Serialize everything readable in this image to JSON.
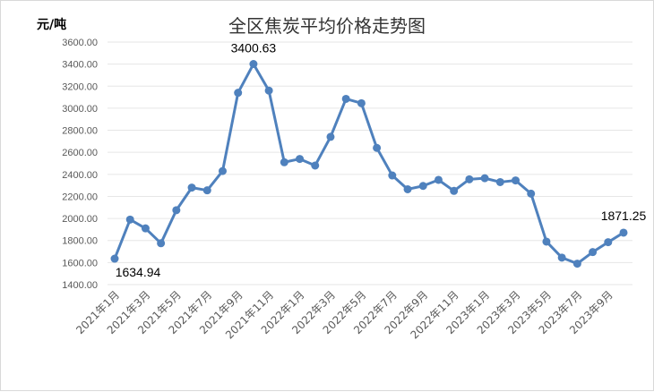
{
  "chart_data": {
    "type": "line",
    "title": "全区焦炭平均价格走势图",
    "ylabel": "元/吨",
    "xlabel": "",
    "ylim": [
      1400,
      3600
    ],
    "yticks": [
      "1400.00",
      "1600.00",
      "1800.00",
      "2000.00",
      "2200.00",
      "2400.00",
      "2600.00",
      "2800.00",
      "3000.00",
      "3200.00",
      "3400.00",
      "3600.00"
    ],
    "grid": true,
    "legend": "none",
    "color": "#4F81BD",
    "x": [
      "2021年1月",
      "2021年2月",
      "2021年3月",
      "2021年4月",
      "2021年5月",
      "2021年6月",
      "2021年7月",
      "2021年8月",
      "2021年9月",
      "2021年10月",
      "2021年11月",
      "2021年12月",
      "2022年1月",
      "2022年2月",
      "2022年3月",
      "2022年4月",
      "2022年5月",
      "2022年6月",
      "2022年7月",
      "2022年8月",
      "2022年9月",
      "2022年10月",
      "2022年11月",
      "2022年12月",
      "2023年1月",
      "2023年2月",
      "2023年3月",
      "2023年4月",
      "2023年5月",
      "2023年6月",
      "2023年7月",
      "2023年8月",
      "2023年9月",
      "2023年10月"
    ],
    "xtick_labels": [
      "2021年1月",
      "2021年3月",
      "2021年5月",
      "2021年7月",
      "2021年9月",
      "2021年11月",
      "2022年1月",
      "2022年3月",
      "2022年5月",
      "2022年7月",
      "2022年9月",
      "2022年11月",
      "2023年1月",
      "2023年3月",
      "2023年5月",
      "2023年7月",
      "2023年9月"
    ],
    "values": [
      1634.94,
      1990,
      1910,
      1775,
      2075,
      2280,
      2255,
      2430,
      3140,
      3400.63,
      3160,
      2510,
      2540,
      2480,
      2740,
      3085,
      3045,
      2640,
      2390,
      2265,
      2295,
      2350,
      2250,
      2355,
      2365,
      2330,
      2345,
      2225,
      1790,
      1645,
      1590,
      1695,
      1785,
      1871.25
    ],
    "data_labels": [
      {
        "index": 0,
        "text": "1634.94"
      },
      {
        "index": 9,
        "text": "3400.63"
      },
      {
        "index": 33,
        "text": "1871.25"
      }
    ]
  }
}
